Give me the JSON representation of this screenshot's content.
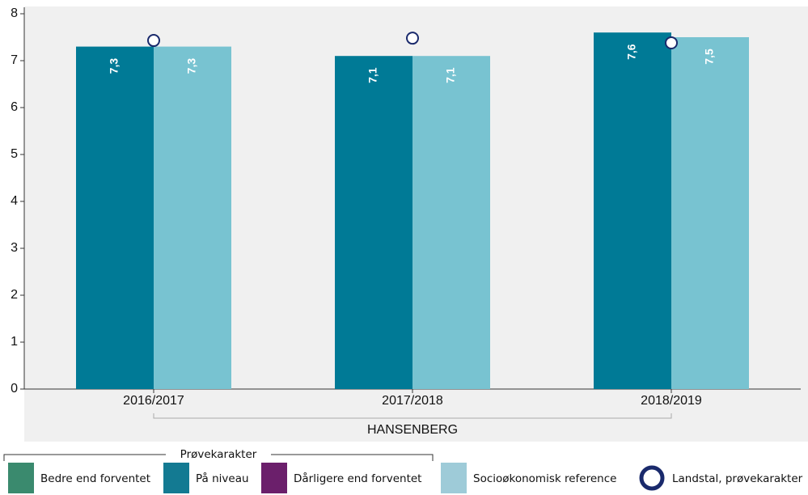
{
  "chart_data": {
    "type": "bar",
    "categories": [
      "2016/2017",
      "2017/2018",
      "2018/2019"
    ],
    "group_label": "HANSENBERG",
    "ylim": [
      0,
      8
    ],
    "yticks": [
      0,
      1,
      2,
      3,
      4,
      5,
      6,
      7,
      8
    ],
    "series": [
      {
        "name": "På niveau",
        "color": "#007a96",
        "values": [
          7.3,
          7.1,
          7.6
        ],
        "value_labels": [
          "7,3",
          "7,1",
          "7,6"
        ]
      },
      {
        "name": "Socioøkonomisk reference",
        "color": "#78c3d1",
        "values": [
          7.3,
          7.1,
          7.5
        ],
        "value_labels": [
          "7,3",
          "7,1",
          "7,5"
        ]
      },
      {
        "name": "Landstal, prøvekarakter",
        "color": "#1a2a6c",
        "marker": "circle",
        "values": [
          7.43,
          7.48,
          7.38
        ]
      }
    ],
    "legend": {
      "group_title": "Prøvekarakter",
      "items": [
        {
          "label": "Bedre end forventet",
          "color": "#3a8a6e"
        },
        {
          "label": "På niveau",
          "color": "#137a92"
        },
        {
          "label": "Dårligere end forventet",
          "color": "#6b1f6b"
        },
        {
          "label": "Socioøkonomisk reference",
          "color": "#9ecbd8"
        },
        {
          "label": "Landstal, prøvekarakter",
          "color": "#1a2a6c"
        }
      ]
    }
  }
}
